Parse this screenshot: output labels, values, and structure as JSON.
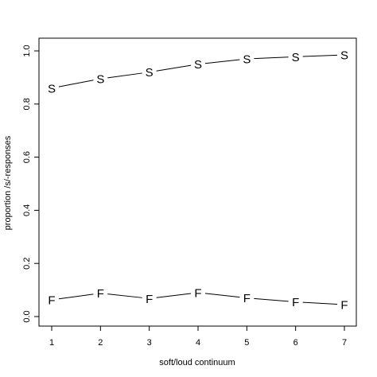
{
  "chart_data": {
    "type": "line",
    "xlabel": "soft/loud continuum",
    "ylabel": "proportion /s/-responses",
    "x": [
      1,
      2,
      3,
      4,
      5,
      6,
      7
    ],
    "xticks": [
      "1",
      "2",
      "3",
      "4",
      "5",
      "6",
      "7"
    ],
    "yticks": [
      "0.0",
      "0.2",
      "0.4",
      "0.6",
      "0.8",
      "1.0"
    ],
    "xlim": [
      1,
      7
    ],
    "ylim": [
      0,
      1
    ],
    "grid": false,
    "series": [
      {
        "marker": "S",
        "values": [
          0.86,
          0.895,
          0.92,
          0.95,
          0.97,
          0.978,
          0.985
        ]
      },
      {
        "marker": "F",
        "values": [
          0.063,
          0.088,
          0.068,
          0.09,
          0.07,
          0.055,
          0.045
        ]
      }
    ]
  }
}
